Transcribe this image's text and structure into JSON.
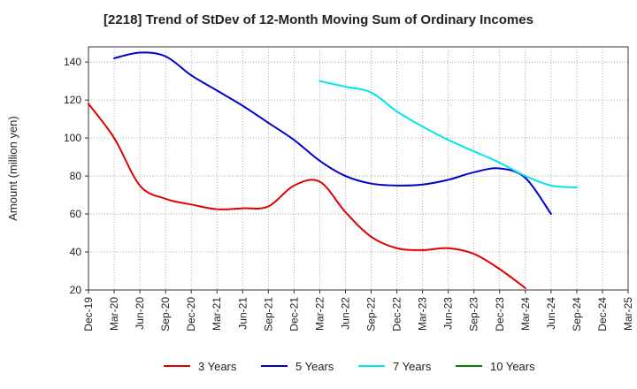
{
  "chart_data": {
    "type": "line",
    "title": "[2218]  Trend of StDev of 12-Month Moving Sum of Ordinary Incomes",
    "ylabel": "Amount (million yen)",
    "xlabel": "",
    "ylim": [
      20,
      148
    ],
    "yticks": [
      20,
      40,
      60,
      80,
      100,
      120,
      140
    ],
    "x_categories": [
      "Dec-19",
      "Mar-20",
      "Jun-20",
      "Sep-20",
      "Dec-20",
      "Mar-21",
      "Jun-21",
      "Sep-21",
      "Dec-21",
      "Mar-22",
      "Jun-22",
      "Sep-22",
      "Dec-22",
      "Mar-23",
      "Jun-23",
      "Sep-23",
      "Dec-23",
      "Mar-24",
      "Jun-24",
      "Sep-24",
      "Dec-24",
      "Mar-25"
    ],
    "grid": true,
    "legend_position": "bottom",
    "series": [
      {
        "name": "3 Years",
        "color": "#e00000",
        "values": [
          118,
          100,
          75,
          68,
          65,
          62.5,
          63,
          64,
          75,
          77,
          61,
          48,
          42,
          41,
          42,
          39,
          31,
          21
        ]
      },
      {
        "name": "5 Years",
        "color": "#0000cc",
        "start_index": 1,
        "values": [
          142,
          145,
          143,
          133,
          125,
          117,
          108,
          99,
          88,
          80,
          76,
          75,
          75.5,
          78,
          82,
          84,
          79,
          60
        ]
      },
      {
        "name": "7 Years",
        "color": "#00e5ee",
        "start_index": 9,
        "values": [
          130,
          127,
          124,
          114,
          106,
          99,
          93,
          87,
          80,
          75,
          74
        ]
      },
      {
        "name": "10 Years",
        "color": "#008000",
        "start_index": 0,
        "values": []
      }
    ]
  }
}
